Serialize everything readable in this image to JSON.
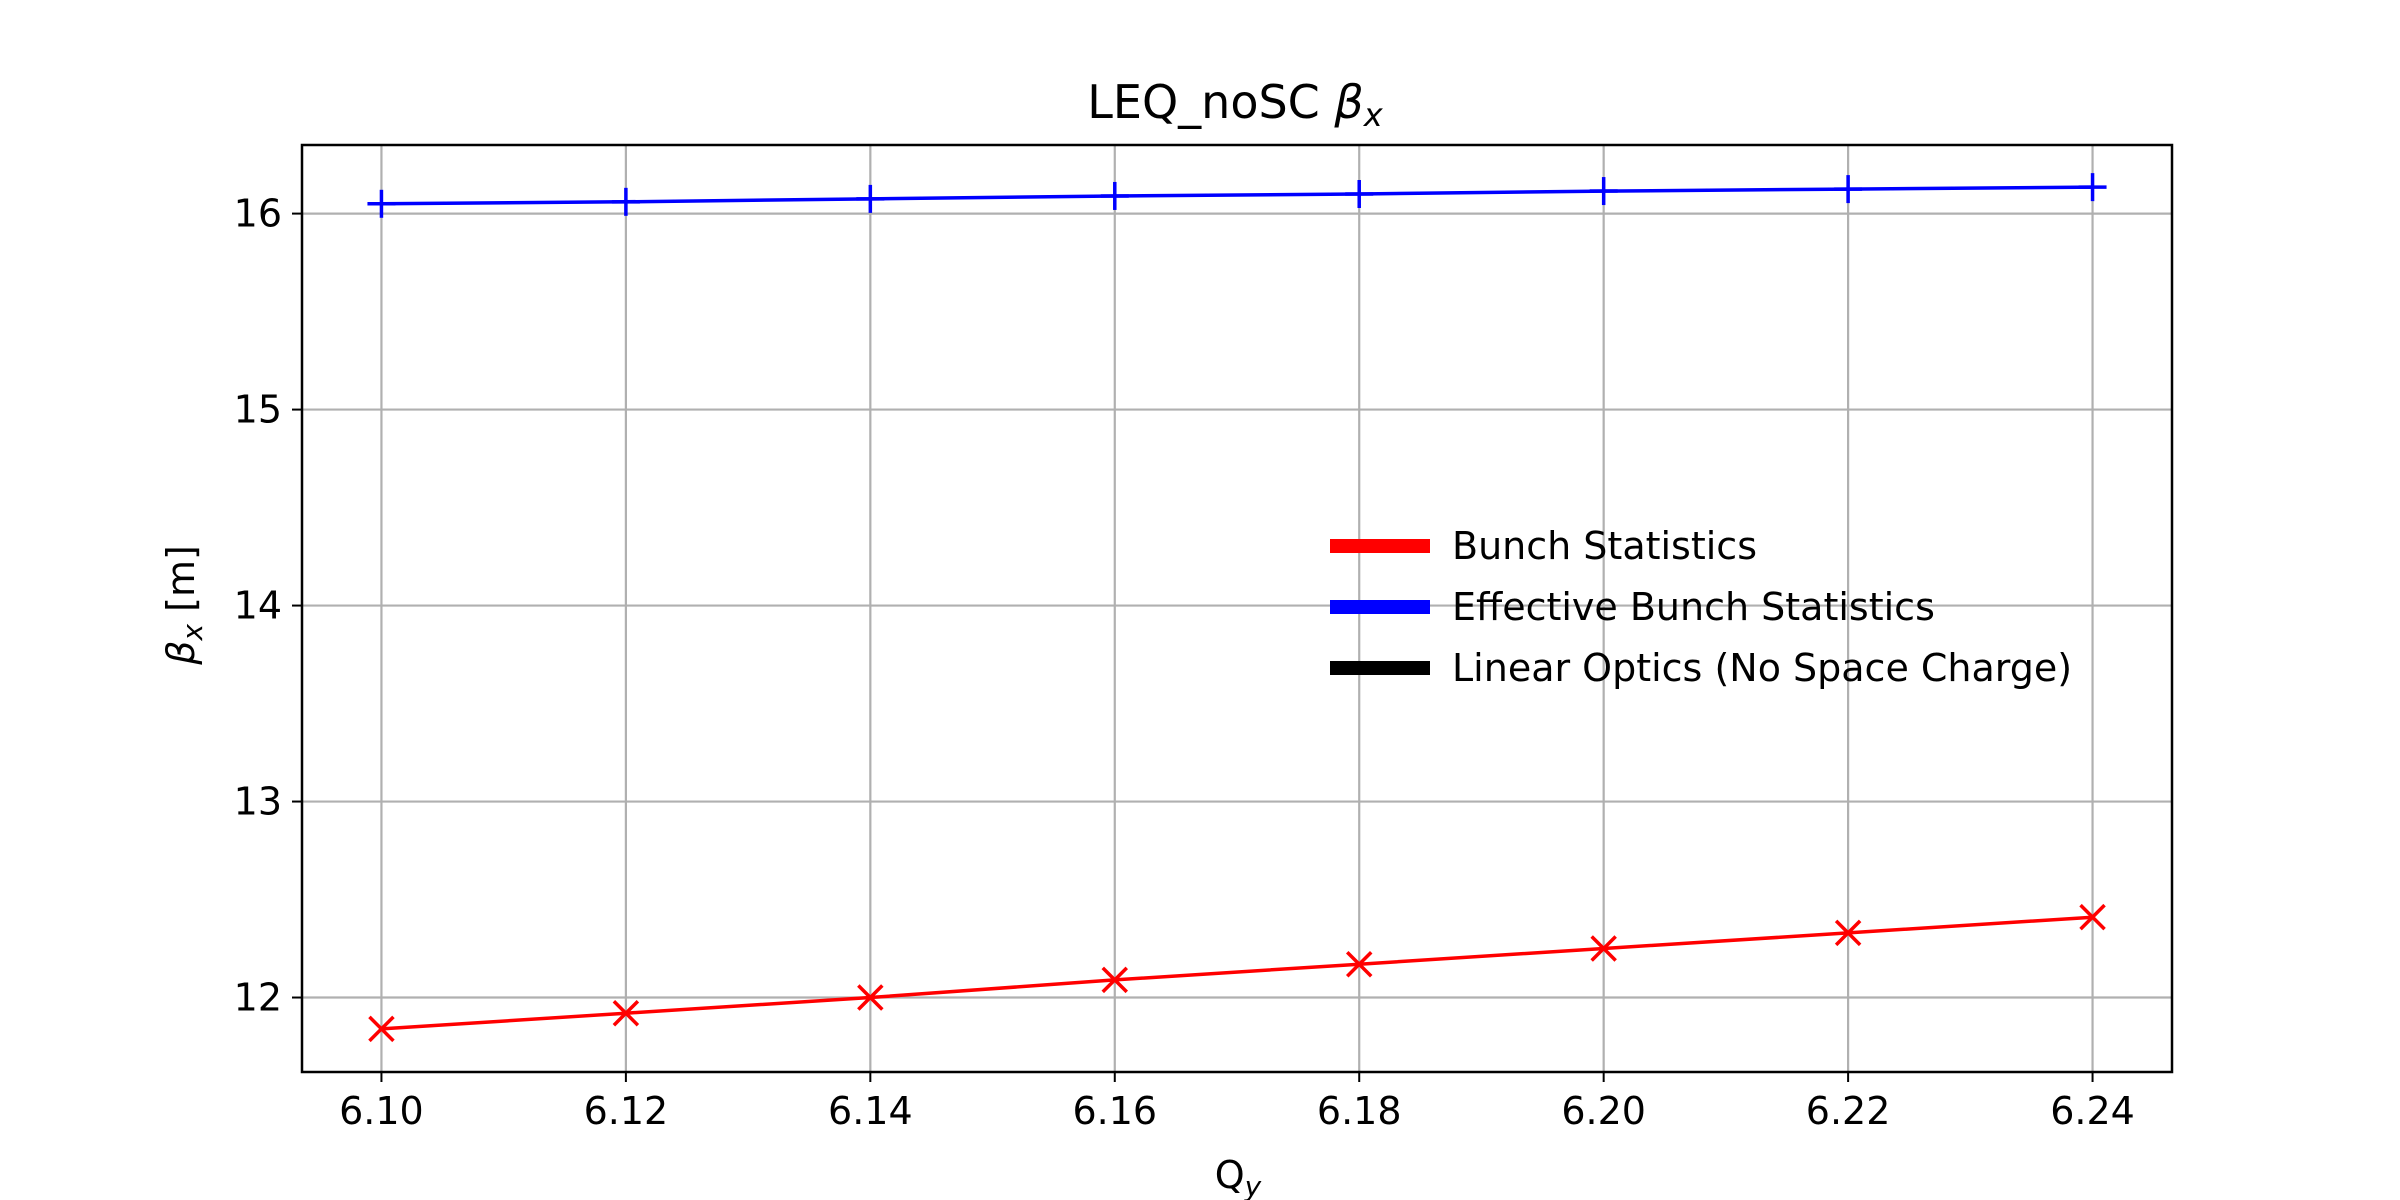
{
  "chart_data": {
    "type": "line",
    "title": {
      "main": "LEQ_noSC ",
      "symbol": "β",
      "sub": "x"
    },
    "xlabel": {
      "main": "Q",
      "sub": "y"
    },
    "ylabel": {
      "symbol": "β",
      "sub": "x",
      "unit": " [m]"
    },
    "xlim": [
      6.0935,
      6.2465
    ],
    "ylim": [
      11.62,
      16.35
    ],
    "x_ticks": [
      "6.10",
      "6.12",
      "6.14",
      "6.16",
      "6.18",
      "6.20",
      "6.22",
      "6.24"
    ],
    "y_ticks": [
      "12",
      "13",
      "14",
      "15",
      "16"
    ],
    "x": [
      6.1,
      6.12,
      6.14,
      6.16,
      6.18,
      6.2,
      6.22,
      6.24
    ],
    "grid": true,
    "legend_position": "center-right",
    "series": [
      {
        "name": "Bunch Statistics",
        "color": "#ff0000",
        "marker": "x",
        "values": [
          11.84,
          11.92,
          12.0,
          12.09,
          12.17,
          12.25,
          12.33,
          12.41
        ]
      },
      {
        "name": "Effective Bunch Statistics",
        "color": "#0000ff",
        "marker": "+",
        "values": [
          16.05,
          16.06,
          16.075,
          16.09,
          16.1,
          16.115,
          16.125,
          16.135
        ]
      }
    ],
    "legend": [
      {
        "name": "Bunch Statistics",
        "color": "#ff0000"
      },
      {
        "name": "Effective Bunch Statistics",
        "color": "#0000ff"
      },
      {
        "name": "Linear Optics (No Space Charge)",
        "color": "#000000"
      }
    ]
  }
}
